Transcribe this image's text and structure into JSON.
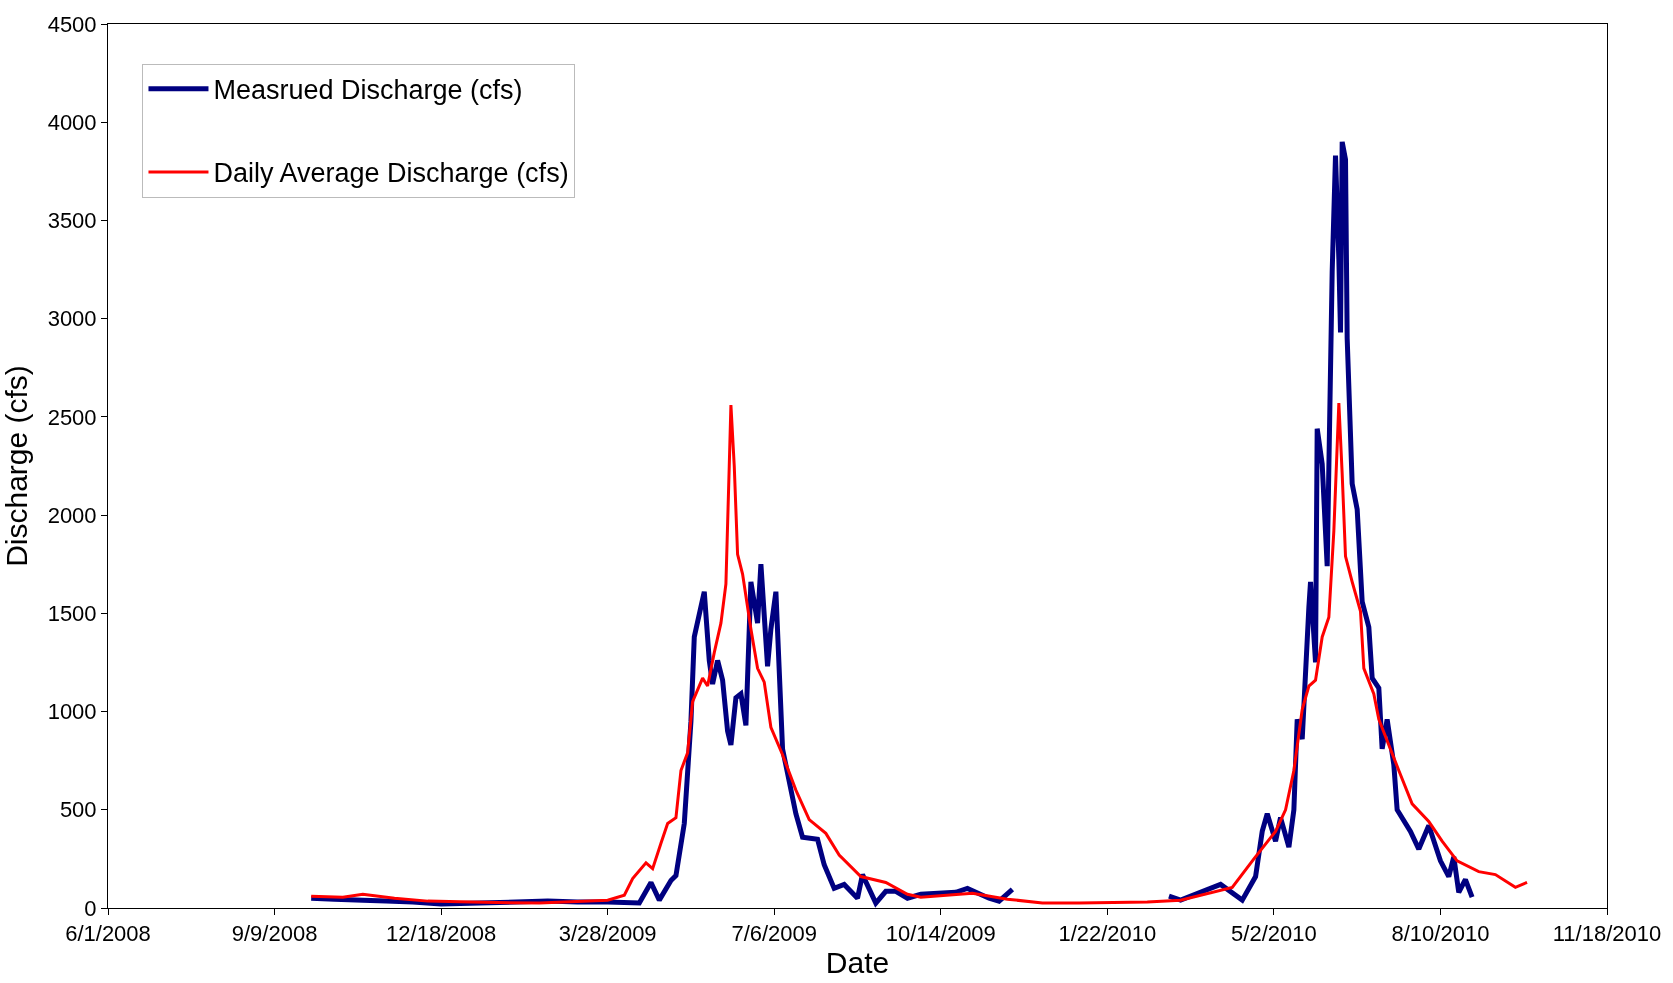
{
  "chart_data": {
    "type": "line",
    "xlabel": "Date",
    "ylabel": "Discharge (cfs)",
    "xlim": [
      "2008-06-01",
      "2010-11-18"
    ],
    "xticks": [
      {
        "value": "2008-06-01",
        "label": "6/1/2008"
      },
      {
        "value": "2008-09-09",
        "label": "9/9/2008"
      },
      {
        "value": "2008-12-18",
        "label": "12/18/2008"
      },
      {
        "value": "2009-03-28",
        "label": "3/28/2009"
      },
      {
        "value": "2009-07-06",
        "label": "7/6/2009"
      },
      {
        "value": "2009-10-14",
        "label": "10/14/2009"
      },
      {
        "value": "2010-01-22",
        "label": "1/22/2010"
      },
      {
        "value": "2010-05-02",
        "label": "5/2/2010"
      },
      {
        "value": "2010-08-10",
        "label": "8/10/2010"
      },
      {
        "value": "2010-11-18",
        "label": "11/18/2010"
      }
    ],
    "ylim": [
      0,
      4500
    ],
    "yticks": [
      0,
      500,
      1000,
      1500,
      2000,
      2500,
      3000,
      3500,
      4000,
      4500
    ],
    "legend": "top left",
    "marker": "none",
    "line_style": "solid",
    "series": [
      {
        "name": "Measrued Discharge (cfs)",
        "color": "#000080",
        "x": [
          "2008-10-01",
          "2008-10-15",
          "2008-11-01",
          "2008-11-15",
          "2008-12-01",
          "2008-12-18",
          "2009-01-10",
          "2009-02-01",
          "2009-02-20",
          "2009-03-10",
          "2009-03-28",
          "2009-04-16",
          "2009-04-23",
          "2009-04-28",
          "2009-05-05",
          "2009-05-08",
          "2009-05-13",
          "2009-05-17",
          "2009-05-19",
          "2009-05-25",
          "2009-05-28",
          "2009-05-30",
          "2009-06-02",
          "2009-06-05",
          "2009-06-08",
          "2009-06-10",
          "2009-06-13",
          "2009-06-16",
          "2009-06-19",
          "2009-06-22",
          "2009-06-26",
          "2009-06-28",
          "2009-07-02",
          "2009-07-04",
          "2009-07-07",
          "2009-07-11",
          "2009-07-19",
          "2009-07-23",
          "2009-08-01",
          "2009-08-05",
          "2009-08-11",
          "2009-08-17",
          "2009-08-25",
          "2009-08-28",
          "2009-09-05",
          "2009-09-11",
          "2009-09-17",
          "2009-09-24",
          "2009-10-02",
          "2009-10-23",
          "2009-10-30",
          "2009-11-12",
          "2009-11-18",
          "2009-11-26",
          "2010-01-01",
          "2010-02-28",
          "2010-03-07",
          "2010-03-31",
          "2010-04-13",
          "2010-04-21",
          "2010-04-25",
          "2010-04-28",
          "2010-05-03",
          "2010-05-06",
          "2010-05-11",
          "2010-05-14",
          "2010-05-16",
          "2010-05-19",
          "2010-05-23",
          "2010-05-24",
          "2010-05-27",
          "2010-05-28",
          "2010-05-31",
          "2010-06-03",
          "2010-06-06",
          "2010-06-08",
          "2010-06-10",
          "2010-06-11",
          "2010-06-12",
          "2010-06-14",
          "2010-06-15",
          "2010-06-18",
          "2010-06-21",
          "2010-06-24",
          "2010-06-28",
          "2010-06-30",
          "2010-07-04",
          "2010-07-06",
          "2010-07-09",
          "2010-07-13",
          "2010-07-15",
          "2010-07-23",
          "2010-07-28",
          "2010-08-03",
          "2010-08-10",
          "2010-08-15",
          "2010-08-18",
          "2010-08-21",
          "2010-08-25",
          "2010-08-29"
        ],
        "values": [
          50,
          45,
          40,
          35,
          30,
          20,
          25,
          30,
          35,
          30,
          30,
          26,
          130,
          40,
          140,
          165,
          430,
          950,
          1380,
          1610,
          1260,
          1140,
          1260,
          1160,
          900,
          830,
          1070,
          1090,
          930,
          1660,
          1450,
          1750,
          1230,
          1420,
          1610,
          810,
          480,
          360,
          350,
          220,
          100,
          120,
          50,
          170,
          25,
          85,
          85,
          50,
          70,
          80,
          100,
          50,
          35,
          95,
          null,
          60,
          40,
          120,
          40,
          160,
          390,
          480,
          340,
          460,
          310,
          500,
          960,
          860,
          1530,
          1660,
          1250,
          2440,
          2260,
          1740,
          3240,
          3830,
          3300,
          2930,
          3900,
          3810,
          2900,
          2160,
          2030,
          1560,
          1430,
          1170,
          1120,
          810,
          960,
          730,
          500,
          390,
          300,
          420,
          240,
          160,
          260,
          80,
          145,
          55
        ]
      },
      {
        "name": "Daily Average Discharge (cfs)",
        "color": "#ff0000",
        "x": [
          "2008-10-01",
          "2008-10-20",
          "2008-11-01",
          "2008-11-20",
          "2008-12-10",
          "2009-01-05",
          "2009-02-15",
          "2009-03-28",
          "2009-04-07",
          "2009-04-12",
          "2009-04-20",
          "2009-04-24",
          "2009-04-29",
          "2009-05-03",
          "2009-05-08",
          "2009-05-11",
          "2009-05-15",
          "2009-05-18",
          "2009-05-24",
          "2009-05-27",
          "2009-05-31",
          "2009-06-04",
          "2009-06-07",
          "2009-06-09",
          "2009-06-10",
          "2009-06-12",
          "2009-06-14",
          "2009-06-17",
          "2009-06-22",
          "2009-06-26",
          "2009-06-30",
          "2009-07-04",
          "2009-07-11",
          "2009-07-19",
          "2009-07-27",
          "2009-08-06",
          "2009-08-14",
          "2009-08-27",
          "2009-09-11",
          "2009-09-24",
          "2009-10-02",
          "2009-11-02",
          "2009-11-23",
          "2009-12-14",
          "2010-01-05",
          "2010-02-15",
          "2010-03-07",
          "2010-04-07",
          "2010-04-20",
          "2010-05-03",
          "2010-05-09",
          "2010-05-14",
          "2010-05-19",
          "2010-05-23",
          "2010-05-27",
          "2010-05-31",
          "2010-06-04",
          "2010-06-07",
          "2010-06-10",
          "2010-06-12",
          "2010-06-14",
          "2010-06-18",
          "2010-06-23",
          "2010-06-25",
          "2010-07-01",
          "2010-07-04",
          "2010-07-10",
          "2010-07-16",
          "2010-07-24",
          "2010-08-03",
          "2010-08-11",
          "2010-08-20",
          "2010-09-02",
          "2010-09-12",
          "2010-09-24",
          "2010-10-01"
        ],
        "values": [
          60,
          55,
          70,
          50,
          35,
          30,
          25,
          40,
          65,
          150,
          230,
          200,
          330,
          430,
          460,
          700,
          790,
          1050,
          1170,
          1130,
          1300,
          1450,
          1650,
          2250,
          2560,
          2250,
          1800,
          1700,
          1420,
          1220,
          1150,
          920,
          780,
          600,
          450,
          380,
          270,
          160,
          130,
          70,
          55,
          75,
          45,
          25,
          25,
          30,
          40,
          105,
          250,
          390,
          500,
          700,
          1010,
          1130,
          1160,
          1380,
          1480,
          1920,
          2570,
          2210,
          1790,
          1660,
          1510,
          1220,
          1090,
          960,
          830,
          700,
          530,
          440,
          340,
          240,
          185,
          170,
          105,
          130
        ]
      }
    ]
  }
}
